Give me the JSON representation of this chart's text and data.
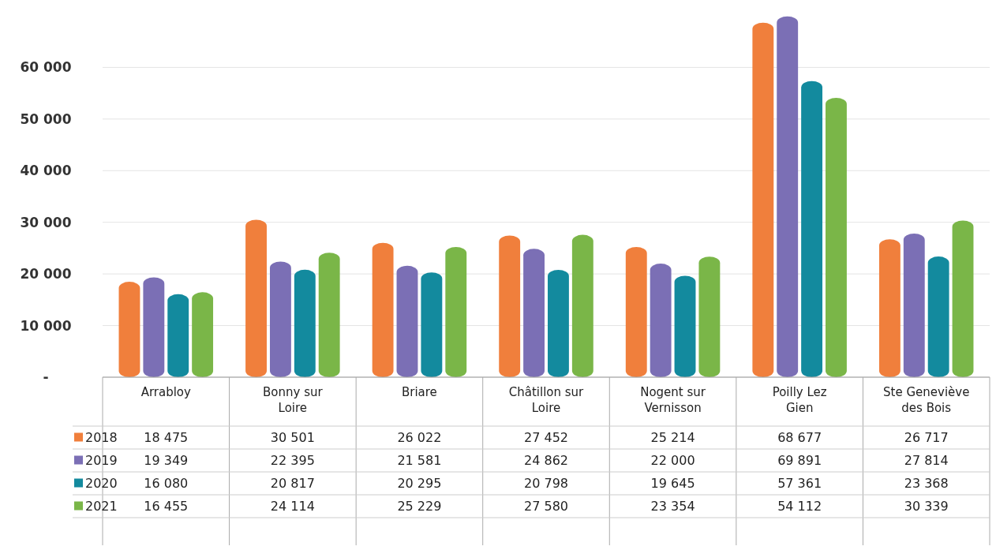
{
  "chart_data": {
    "type": "bar",
    "categories": [
      "Arrabloy",
      "Bonny sur Loire",
      "Briare",
      "Châtillon sur Loire",
      "Nogent sur Vernisson",
      "Poilly Lez Gien",
      "Ste Geneviève des Bois"
    ],
    "series": [
      {
        "name": "2018",
        "color": "#f07f3c",
        "values": [
          18475,
          30501,
          26022,
          27452,
          25214,
          68677,
          26717
        ],
        "value_labels": [
          "18 475",
          "30 501",
          "26 022",
          "27 452",
          "25 214",
          "68 677",
          "26 717"
        ]
      },
      {
        "name": "2019",
        "color": "#7b6fb5",
        "values": [
          19349,
          22395,
          21581,
          24862,
          22000,
          69891,
          27814
        ],
        "value_labels": [
          "19 349",
          "22 395",
          "21 581",
          "24 862",
          "22 000",
          "69 891",
          "27 814"
        ]
      },
      {
        "name": "2020",
        "color": "#138a9e",
        "values": [
          16080,
          20817,
          20295,
          20798,
          19645,
          57361,
          23368
        ],
        "value_labels": [
          "16 080",
          "20 817",
          "20 295",
          "20 798",
          "19 645",
          "57 361",
          "23 368"
        ]
      },
      {
        "name": "2021",
        "color": "#7ab648",
        "values": [
          16455,
          24114,
          25229,
          27580,
          23354,
          54112,
          30339
        ],
        "value_labels": [
          "16 455",
          "24 114",
          "25 229",
          "27 580",
          "23 354",
          "54 112",
          "30 339"
        ]
      }
    ],
    "ylim": [
      0,
      70000
    ],
    "yticks": [
      {
        "value": 0,
        "label": "-"
      },
      {
        "value": 10000,
        "label": "10 000"
      },
      {
        "value": 20000,
        "label": "20 000"
      },
      {
        "value": 30000,
        "label": "30 000"
      },
      {
        "value": 40000,
        "label": "40 000"
      },
      {
        "value": 50000,
        "label": "50 000"
      },
      {
        "value": 60000,
        "label": "60 000"
      }
    ],
    "grid": "y",
    "legend": "bottom"
  }
}
